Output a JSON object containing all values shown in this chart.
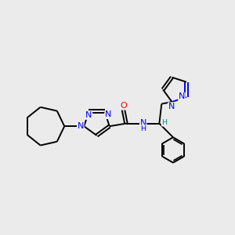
{
  "background_color": "#ebebeb",
  "bond_color": "#000000",
  "n_color": "#0000ff",
  "o_color": "#ff0000",
  "h_color": "#008b8b",
  "figsize": [
    3.0,
    3.0
  ],
  "dpi": 100,
  "xlim": [
    0,
    10
  ],
  "ylim": [
    0,
    10
  ],
  "lw": 1.4,
  "fs": 8.0
}
